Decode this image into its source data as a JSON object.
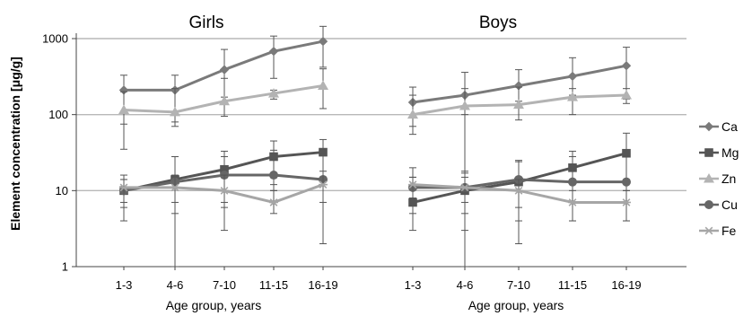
{
  "chart_data": {
    "type": "line",
    "ylabel": "Element concentration [μg/g]",
    "yscale": "log",
    "ylim": [
      1,
      1000
    ],
    "y_ticks": [
      "1",
      "10",
      "100",
      "1000"
    ],
    "grid": true,
    "legend_position": "right",
    "categories": [
      "1-3",
      "4-6",
      "7-10",
      "11-15",
      "16-19"
    ],
    "series_styles": [
      {
        "name": "Ca",
        "color": "#7a7a7a",
        "marker": "diamond"
      },
      {
        "name": "Mg",
        "color": "#555555",
        "marker": "square"
      },
      {
        "name": "Zn",
        "color": "#b3b3b3",
        "marker": "triangle"
      },
      {
        "name": "Cu",
        "color": "#666666",
        "marker": "circle"
      },
      {
        "name": "Fe",
        "color": "#a6a6a6",
        "marker": "star"
      }
    ],
    "panels": [
      {
        "title": "Girls",
        "xlabel": "Age group, years",
        "series": [
          {
            "name": "Ca",
            "values": [
              210,
              210,
              390,
              680,
              920
            ],
            "err_low": [
              35,
              80,
              170,
              300,
              420
            ],
            "err_high": [
              330,
              330,
              720,
              1080,
              1450
            ]
          },
          {
            "name": "Mg",
            "values": [
              10,
              14,
              19,
              28,
              32
            ],
            "err_low": [
              4,
              5,
              7,
              12,
              15
            ],
            "err_high": [
              16,
              28,
              33,
              45,
              47
            ]
          },
          {
            "name": "Zn",
            "values": [
              115,
              108,
              150,
              190,
              240
            ],
            "err_low": [
              75,
              70,
              95,
              160,
              120
            ],
            "err_high": [
              200,
              220,
              300,
              210,
              400
            ]
          },
          {
            "name": "Cu",
            "values": [
              10,
              13,
              16,
              16,
              14
            ],
            "err_low": [
              6,
              1,
              3,
              10,
              2
            ],
            "err_high": [
              14,
              28,
              28,
              34,
              30
            ]
          },
          {
            "name": "Fe",
            "values": [
              11,
              11,
              10,
              7,
              12
            ],
            "err_low": [
              7,
              7,
              6,
              5,
              7
            ],
            "err_high": [
              14,
              16,
              16,
              10,
              18
            ]
          }
        ]
      },
      {
        "title": "Boys",
        "xlabel": "Age group, years",
        "series": [
          {
            "name": "Ca",
            "values": [
              145,
              180,
              240,
              320,
              440
            ],
            "err_low": [
              70,
              100,
              150,
              180,
              160
            ],
            "err_high": [
              230,
              360,
              390,
              560,
              770
            ]
          },
          {
            "name": "Mg",
            "values": [
              7,
              10,
              13,
              20,
              31
            ],
            "err_low": [
              3,
              3,
              4,
              7,
              10
            ],
            "err_high": [
              15,
              18,
              25,
              33,
              57
            ]
          },
          {
            "name": "Zn",
            "values": [
              100,
              130,
              135,
              170,
              180
            ],
            "err_low": [
              55,
              1,
              85,
              100,
              140
            ],
            "err_high": [
              180,
              220,
              230,
              220,
              220
            ]
          },
          {
            "name": "Cu",
            "values": [
              11,
              11,
              14,
              13,
              13
            ],
            "err_low": [
              5,
              5,
              2,
              4,
              4
            ],
            "err_high": [
              20,
              17,
              24,
              28,
              28
            ]
          },
          {
            "name": "Fe",
            "values": [
              12,
              11,
              10,
              7,
              7
            ],
            "err_low": [
              8,
              7,
              6,
              4,
              4
            ],
            "err_high": [
              15,
              15,
              14,
              10,
              10
            ]
          }
        ]
      }
    ]
  }
}
